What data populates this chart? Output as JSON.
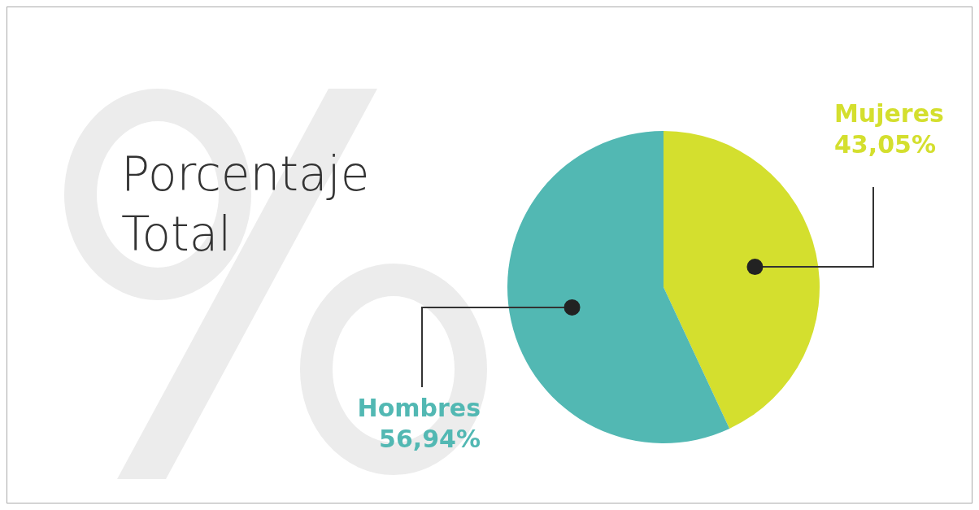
{
  "chart_data": {
    "type": "pie",
    "title": "Porcentaje Total",
    "categories": [
      "Mujeres",
      "Hombres"
    ],
    "values": [
      43.05,
      56.94
    ],
    "colors": [
      "#d4df2e",
      "#52b8b3"
    ],
    "value_labels": [
      "43,05%",
      "56,94%"
    ]
  }
}
